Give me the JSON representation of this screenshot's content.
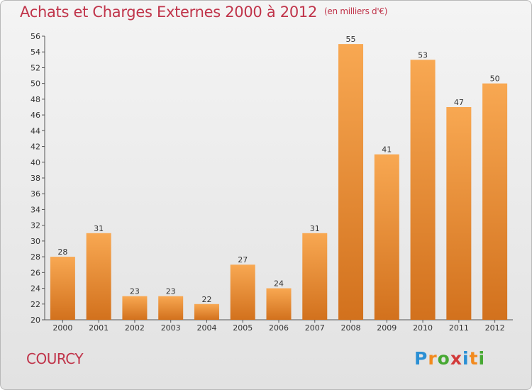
{
  "title": "Achats et Charges Externes 2000 à 2012",
  "subtitle": "(en milliers d'€)",
  "commune": "COURCY",
  "logo": {
    "letters": [
      "P",
      "r",
      "o",
      "x",
      "i",
      "t",
      "i"
    ],
    "colors": [
      "#2a8fd4",
      "#f28a1e",
      "#46a832",
      "#d23a3a",
      "#2a8fd4",
      "#f28a1e",
      "#46a832"
    ]
  },
  "colors": {
    "title": "#c0344a",
    "bar_light": "#f8a852",
    "bar_dark": "#d2711d"
  },
  "chart_data": {
    "type": "bar",
    "title": "Achats et Charges Externes 2000 à 2012",
    "categories": [
      "2000",
      "2001",
      "2002",
      "2003",
      "2004",
      "2005",
      "2006",
      "2007",
      "2008",
      "2009",
      "2010",
      "2011",
      "2012"
    ],
    "values": [
      28,
      31,
      23,
      23,
      22,
      27,
      24,
      31,
      55,
      41,
      53,
      47,
      50
    ],
    "ylim": [
      20,
      56
    ],
    "yticks": [
      20,
      22,
      24,
      26,
      28,
      30,
      32,
      34,
      36,
      38,
      40,
      42,
      44,
      46,
      48,
      50,
      52,
      54,
      56
    ],
    "grid": false,
    "data_labels": true
  }
}
